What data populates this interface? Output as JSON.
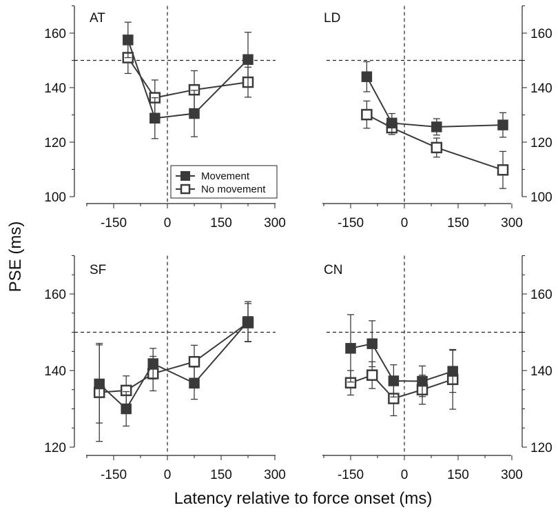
{
  "figure": {
    "ylabel": "PSE (ms)",
    "xlabel": "Latency relative to force onset (ms)"
  },
  "legend": {
    "movement": "Movement",
    "no_movement": "No movement"
  },
  "colors": {
    "movement_fill": "#3a3a3a",
    "no_movement_fill": "#ffffff",
    "line": "#3a3a3a",
    "axis": "#222222"
  },
  "chart_data": [
    {
      "type": "line",
      "panel": "AT",
      "title": "AT",
      "x_ticks": [
        -150,
        0,
        150,
        300
      ],
      "x_tick_labels": [
        "-150",
        "0",
        "150",
        "300"
      ],
      "xlim": [
        -225,
        300
      ],
      "y_ticks": [
        100,
        120,
        140,
        160
      ],
      "y_tick_labels": [
        "100",
        "120",
        "140",
        "160"
      ],
      "ylim": [
        100,
        170
      ],
      "y_axis_side": "left",
      "reference_lines": {
        "x": 0,
        "y": 150
      },
      "legend_position": "bottom-center",
      "series": [
        {
          "name": "Movement",
          "x": [
            -110,
            -35,
            75,
            225
          ],
          "y": [
            157.5,
            128.8,
            130.5,
            150.3
          ],
          "err": [
            6.5,
            7.5,
            8.5,
            10.0
          ]
        },
        {
          "name": "No movement",
          "x": [
            -110,
            -35,
            75,
            225
          ],
          "y": [
            151.0,
            136.3,
            139.2,
            142.0
          ],
          "err": [
            5.8,
            6.5,
            7.0,
            5.5
          ]
        }
      ]
    },
    {
      "type": "line",
      "panel": "LD",
      "title": "LD",
      "x_ticks": [
        -150,
        0,
        150,
        300
      ],
      "x_tick_labels": [
        "-150",
        "0",
        "150",
        "300"
      ],
      "xlim": [
        -225,
        300
      ],
      "y_ticks": [
        100,
        120,
        140,
        160
      ],
      "y_tick_labels": [
        "100",
        "120",
        "140",
        "160"
      ],
      "ylim": [
        100,
        170
      ],
      "y_axis_side": "right",
      "reference_lines": {
        "x": 0,
        "y": 150
      },
      "series": [
        {
          "name": "Movement",
          "x": [
            -105,
            -35,
            90,
            275
          ],
          "y": [
            144.0,
            127.0,
            125.6,
            126.3
          ],
          "err": [
            5.5,
            3.5,
            3.0,
            4.5
          ]
        },
        {
          "name": "No movement",
          "x": [
            -105,
            -35,
            90,
            275
          ],
          "y": [
            130.1,
            125.3,
            118.0,
            109.8
          ],
          "err": [
            5.0,
            2.5,
            3.5,
            6.8
          ]
        }
      ]
    },
    {
      "type": "line",
      "panel": "SF",
      "title": "SF",
      "x_ticks": [
        -150,
        0,
        150,
        300
      ],
      "x_tick_labels": [
        "-150",
        "0",
        "150",
        "300"
      ],
      "xlim": [
        -225,
        300
      ],
      "y_ticks": [
        120,
        140,
        160
      ],
      "y_tick_labels": [
        "120",
        "140",
        "160"
      ],
      "ylim": [
        120,
        170
      ],
      "y_axis_side": "left",
      "reference_lines": {
        "x": 0,
        "y": 150
      },
      "series": [
        {
          "name": "Movement",
          "x": [
            -190,
            -115,
            -40,
            75,
            225
          ],
          "y": [
            136.5,
            130.0,
            141.8,
            136.7,
            152.8
          ],
          "err": [
            10.2,
            4.5,
            4.0,
            4.2,
            5.2
          ]
        },
        {
          "name": "No movement",
          "x": [
            -190,
            -115,
            -40,
            75,
            225
          ],
          "y": [
            134.3,
            134.8,
            139.2,
            142.3,
            152.5
          ],
          "err": [
            12.8,
            3.8,
            4.5,
            4.3,
            5.0
          ]
        }
      ]
    },
    {
      "type": "line",
      "panel": "CN",
      "title": "CN",
      "x_ticks": [
        -150,
        0,
        150,
        300
      ],
      "x_tick_labels": [
        "-150",
        "0",
        "150",
        "300"
      ],
      "xlim": [
        -225,
        300
      ],
      "y_ticks": [
        120,
        140,
        160
      ],
      "y_tick_labels": [
        "120",
        "140",
        "160"
      ],
      "ylim": [
        120,
        170
      ],
      "y_axis_side": "right",
      "reference_lines": {
        "x": 0,
        "y": 150
      },
      "series": [
        {
          "name": "Movement",
          "x": [
            -150,
            -90,
            -30,
            50,
            135
          ],
          "y": [
            145.8,
            147.0,
            137.3,
            137.2,
            139.8
          ],
          "err": [
            8.8,
            6.0,
            4.2,
            4.0,
            5.5
          ]
        },
        {
          "name": "No movement",
          "x": [
            -150,
            -90,
            -30,
            50,
            135
          ],
          "y": [
            136.8,
            138.8,
            132.7,
            135.0,
            137.7
          ],
          "err": [
            3.2,
            3.5,
            4.5,
            3.8,
            7.8
          ]
        }
      ]
    }
  ]
}
